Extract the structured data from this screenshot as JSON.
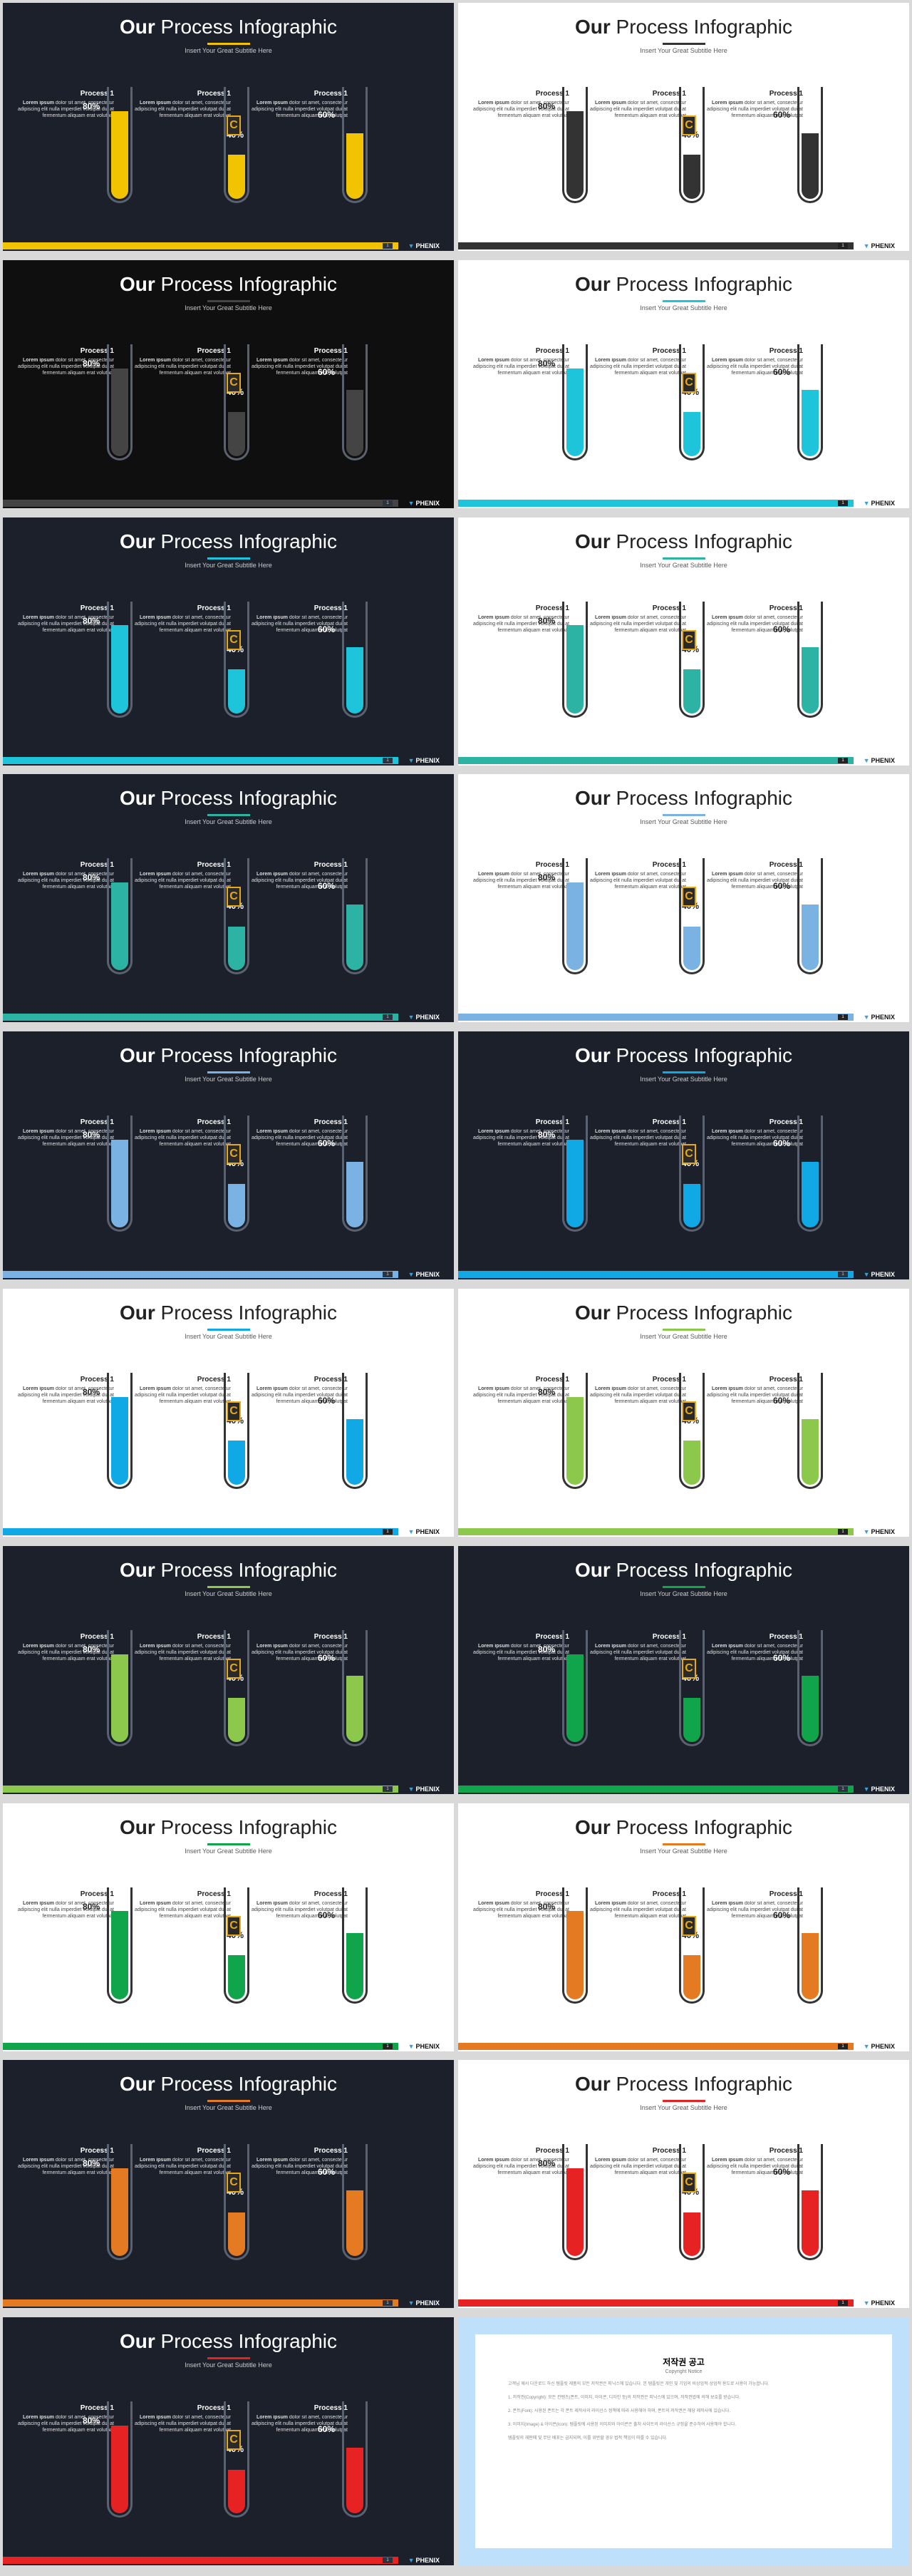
{
  "title_bold": "Our",
  "title_rest": "Process Infographic",
  "subtitle": "Insert Your Great Subtitle Here",
  "process_title": "Process 1",
  "process_desc_bold": "Lorem ipsum",
  "process_desc": "dolor sit amet, consectetur adipiscing elit nulla imperdiet volutpat dui at fermentum aliquam erat volutpat",
  "pct_values": [
    "80%",
    "40%",
    "60%"
  ],
  "fill_levels": [
    0.8,
    0.4,
    0.6
  ],
  "badge_letter": "C",
  "logo_text": "PHENIX",
  "page_num": "1",
  "slides": [
    {
      "theme": "dark",
      "accent": "#f2c300"
    },
    {
      "theme": "light",
      "accent": "#333333"
    },
    {
      "theme": "black",
      "accent": "#444444"
    },
    {
      "theme": "light",
      "accent": "#1ec4d9"
    },
    {
      "theme": "dark",
      "accent": "#1ec4d9"
    },
    {
      "theme": "light",
      "accent": "#2cb3a4"
    },
    {
      "theme": "dark",
      "accent": "#2cb3a4"
    },
    {
      "theme": "light",
      "accent": "#7ab3e3"
    },
    {
      "theme": "dark",
      "accent": "#7ab3e3"
    },
    {
      "theme": "dark",
      "accent": "#10a9e6"
    },
    {
      "theme": "light",
      "accent": "#10a9e6"
    },
    {
      "theme": "light",
      "accent": "#8cc84b"
    },
    {
      "theme": "dark",
      "accent": "#8cc84b"
    },
    {
      "theme": "dark",
      "accent": "#10a54a"
    },
    {
      "theme": "light",
      "accent": "#10a54a"
    },
    {
      "theme": "light",
      "accent": "#e47b22"
    },
    {
      "theme": "dark",
      "accent": "#e47b22"
    },
    {
      "theme": "light",
      "accent": "#e62222"
    },
    {
      "theme": "dark",
      "accent": "#e62222"
    }
  ],
  "notice": {
    "title": "저작권 공고",
    "subtitle": "Copyright Notice",
    "paragraphs": [
      "고객님 께서 다운로드 하신 템플릿 제품의 모든 저작권은 피닉스에 있습니다. 본 템플릿은 개인 및 기업의 비상업적·상업적 용도로 사용이 가능합니다.",
      "1. 저작권(Copyright): 모든 컨텐츠(폰트, 이미지, 아이콘, 디자인 등)의 저작권은 피닉스에 있으며, 저작권법에 의해 보호를 받습니다.",
      "2. 폰트(Font): 사용된 폰트는 각 폰트 제작사의 라이선스 정책에 따라 사용해야 하며, 폰트의 저작권은 해당 제작사에 있습니다.",
      "3. 이미지(Image) & 아이콘(Icon): 템플릿에 사용된 이미지와 아이콘은 출처 사이트의 라이선스 규정을 준수하여 사용해야 합니다.",
      "템플릿의 재판매 및 무단 배포는 금지되며, 이를 위반할 경우 법적 책임이 따를 수 있습니다."
    ]
  }
}
